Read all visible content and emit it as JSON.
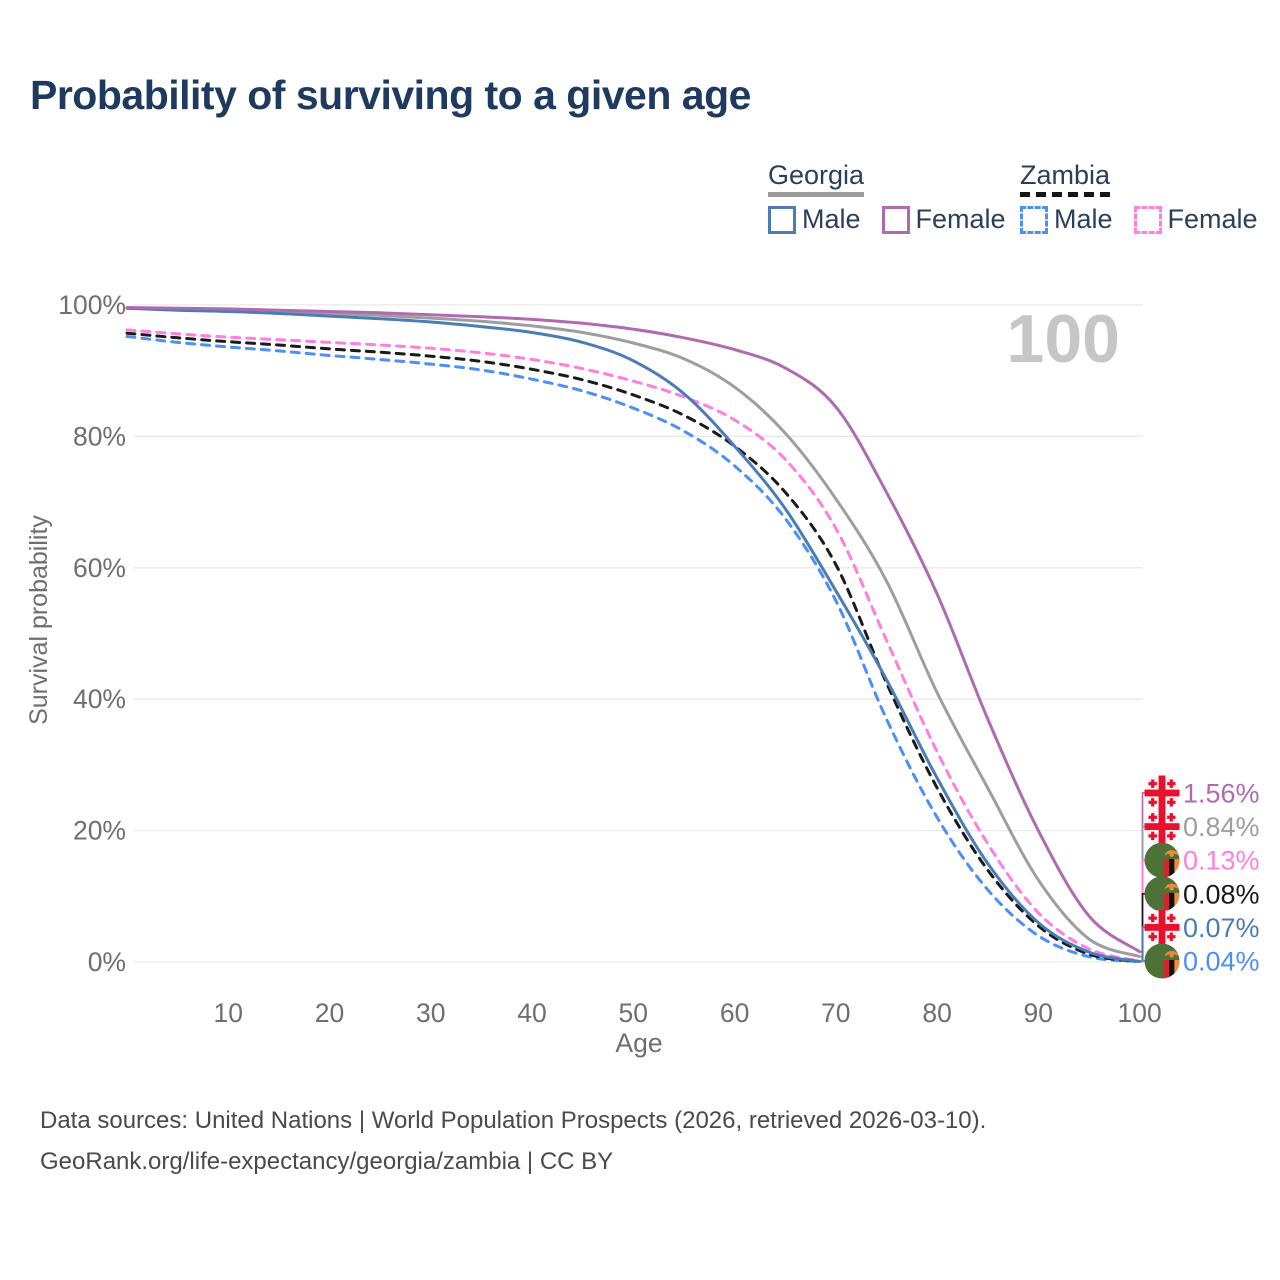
{
  "title": "Probability of surviving to a given age",
  "watermark": "100",
  "legend": {
    "groups": [
      {
        "name": "Georgia",
        "style": "solid",
        "items": [
          {
            "label": "Male",
            "color": "#4a7db5"
          },
          {
            "label": "Female",
            "color": "#b06ab0"
          }
        ]
      },
      {
        "name": "Zambia",
        "style": "dashed",
        "items": [
          {
            "label": "Male",
            "color": "#4c8ff5"
          },
          {
            "label": "Female",
            "color": "#ff7ee0"
          }
        ]
      }
    ]
  },
  "chart_data": {
    "type": "line",
    "title": "Probability of surviving to a given age",
    "xlabel": "Age",
    "ylabel": "Survival probability",
    "xlim": [
      0,
      100
    ],
    "ylim": [
      0,
      100
    ],
    "grid": "horizontal",
    "x_ticks": [
      10,
      20,
      30,
      40,
      50,
      60,
      70,
      80,
      90,
      100
    ],
    "y_ticks": [
      "0%",
      "20%",
      "40%",
      "60%",
      "80%",
      "100%"
    ],
    "x": [
      0,
      5,
      10,
      15,
      20,
      25,
      30,
      35,
      40,
      45,
      50,
      55,
      60,
      65,
      70,
      75,
      80,
      85,
      90,
      95,
      100
    ],
    "series": [
      {
        "name": "Georgia Female",
        "color": "#b06ab0",
        "dash": "solid",
        "flag": "georgia",
        "end_label": "1.56%",
        "values": [
          99.6,
          99.5,
          99.4,
          99.2,
          99.0,
          98.8,
          98.5,
          98.2,
          97.8,
          97.2,
          96.3,
          95.0,
          93.2,
          90.4,
          84.5,
          71.5,
          56,
          37,
          20,
          7,
          1.56
        ]
      },
      {
        "name": "Georgia",
        "color": "#9e9e9e",
        "dash": "solid",
        "flag": "georgia",
        "end_label": "0.84%",
        "values": [
          99.5,
          99.4,
          99.2,
          99.0,
          98.7,
          98.4,
          98.0,
          97.5,
          96.8,
          95.8,
          94.2,
          91.8,
          87.5,
          80.5,
          70.5,
          58,
          41,
          26.5,
          12.5,
          3.5,
          0.84
        ]
      },
      {
        "name": "Zambia Female",
        "color": "#ff7ee0",
        "dash": "dashed",
        "flag": "zambia",
        "end_label": "0.13%",
        "values": [
          96.2,
          95.6,
          95.1,
          94.7,
          94.3,
          93.9,
          93.4,
          92.7,
          91.7,
          90.3,
          88.4,
          86.0,
          82.5,
          76.5,
          66,
          49,
          32,
          18,
          7.5,
          2,
          0.13
        ]
      },
      {
        "name": "Zambia",
        "color": "#1a1a1a",
        "dash": "dashed",
        "flag": "zambia",
        "end_label": "0.08%",
        "values": [
          95.7,
          95.0,
          94.4,
          93.9,
          93.3,
          92.8,
          92.2,
          91.4,
          90.2,
          88.6,
          86.3,
          83.2,
          78.5,
          71.5,
          60.5,
          42.5,
          26.5,
          14,
          5.5,
          1.2,
          0.08
        ]
      },
      {
        "name": "Georgia Male",
        "color": "#4a7db5",
        "dash": "solid",
        "flag": "georgia",
        "end_label": "0.07%",
        "values": [
          99.5,
          99.2,
          99.0,
          98.7,
          98.3,
          97.9,
          97.4,
          96.7,
          95.8,
          94.3,
          91.5,
          86.5,
          78.5,
          69,
          56.5,
          43,
          28,
          15,
          6,
          1.5,
          0.07
        ]
      },
      {
        "name": "Zambia Male",
        "color": "#4c8ff5",
        "dash": "dashed",
        "flag": "zambia",
        "end_label": "0.04%",
        "values": [
          95.2,
          94.3,
          93.6,
          93.0,
          92.3,
          91.7,
          91.0,
          90.1,
          88.7,
          86.9,
          84.3,
          80.8,
          75.5,
          67.5,
          55,
          37,
          22,
          11,
          4,
          0.8,
          0.04
        ]
      }
    ]
  },
  "footer": {
    "line1": "Data sources: United Nations | World Population Prospects (2026, retrieved 2026-03-10).",
    "line2": "GeoRank.org/life-expectancy/georgia/zambia | CC BY"
  }
}
